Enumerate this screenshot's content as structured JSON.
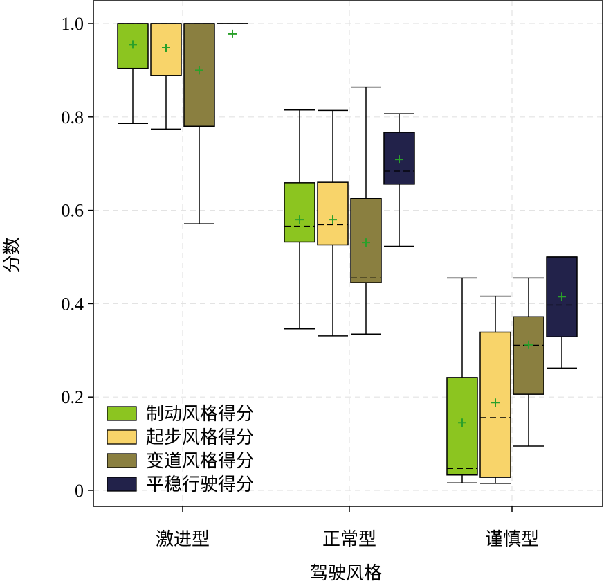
{
  "chart_data": {
    "type": "box",
    "xlabel": "驾驶风格",
    "ylabel": "分数",
    "categories": [
      "激进型",
      "正常型",
      "谨慎型"
    ],
    "ylim": [
      0,
      1.0
    ],
    "yticks": [
      0,
      0.2,
      0.4,
      0.6,
      0.8,
      1.0
    ],
    "ytick_labels": [
      "0",
      "0.2",
      "0.4",
      "0.6",
      "0.8",
      "1.0"
    ],
    "grid": true,
    "legend_position": "bottom-left",
    "series": [
      {
        "name": "制动风格得分",
        "color": "#8cc520",
        "boxes": [
          {
            "whislo": 0.786,
            "q1": 0.904,
            "median": 1.0,
            "q3": 1.0,
            "whishi": 1.0,
            "mean": 0.955
          },
          {
            "whislo": 0.346,
            "q1": 0.532,
            "median": 0.566,
            "q3": 0.659,
            "whishi": 0.815,
            "mean": 0.58
          },
          {
            "whislo": 0.016,
            "q1": 0.033,
            "median": 0.047,
            "q3": 0.242,
            "whishi": 0.455,
            "mean": 0.145
          }
        ]
      },
      {
        "name": "起步风格得分",
        "color": "#f8d46a",
        "boxes": [
          {
            "whislo": 0.774,
            "q1": 0.889,
            "median": 1.0,
            "q3": 1.0,
            "whishi": 1.0,
            "mean": 0.948
          },
          {
            "whislo": 0.331,
            "q1": 0.526,
            "median": 0.569,
            "q3": 0.66,
            "whishi": 0.814,
            "mean": 0.58
          },
          {
            "whislo": 0.015,
            "q1": 0.028,
            "median": 0.156,
            "q3": 0.339,
            "whishi": 0.416,
            "mean": 0.188
          }
        ]
      },
      {
        "name": "变道风格得分",
        "color": "#8a7f40",
        "boxes": [
          {
            "whislo": 0.571,
            "q1": 0.78,
            "median": 1.0,
            "q3": 1.0,
            "whishi": 1.0,
            "mean": 0.9
          },
          {
            "whislo": 0.335,
            "q1": 0.445,
            "median": 0.455,
            "q3": 0.625,
            "whishi": 0.864,
            "mean": 0.531
          },
          {
            "whislo": 0.095,
            "q1": 0.206,
            "median": 0.311,
            "q3": 0.372,
            "whishi": 0.455,
            "mean": 0.312
          }
        ]
      },
      {
        "name": "平稳行驶得分",
        "color": "#22224a",
        "boxes": [
          {
            "whislo": 1.0,
            "q1": 1.0,
            "median": 1.0,
            "q3": 1.0,
            "whishi": 1.0,
            "mean": 0.978
          },
          {
            "whislo": 0.523,
            "q1": 0.656,
            "median": 0.684,
            "q3": 0.767,
            "whishi": 0.807,
            "mean": 0.709
          },
          {
            "whislo": 0.262,
            "q1": 0.329,
            "median": 0.397,
            "q3": 0.5,
            "whishi": 0.5,
            "mean": 0.415
          }
        ]
      }
    ],
    "mean_marker_color": "#2aa02a"
  }
}
